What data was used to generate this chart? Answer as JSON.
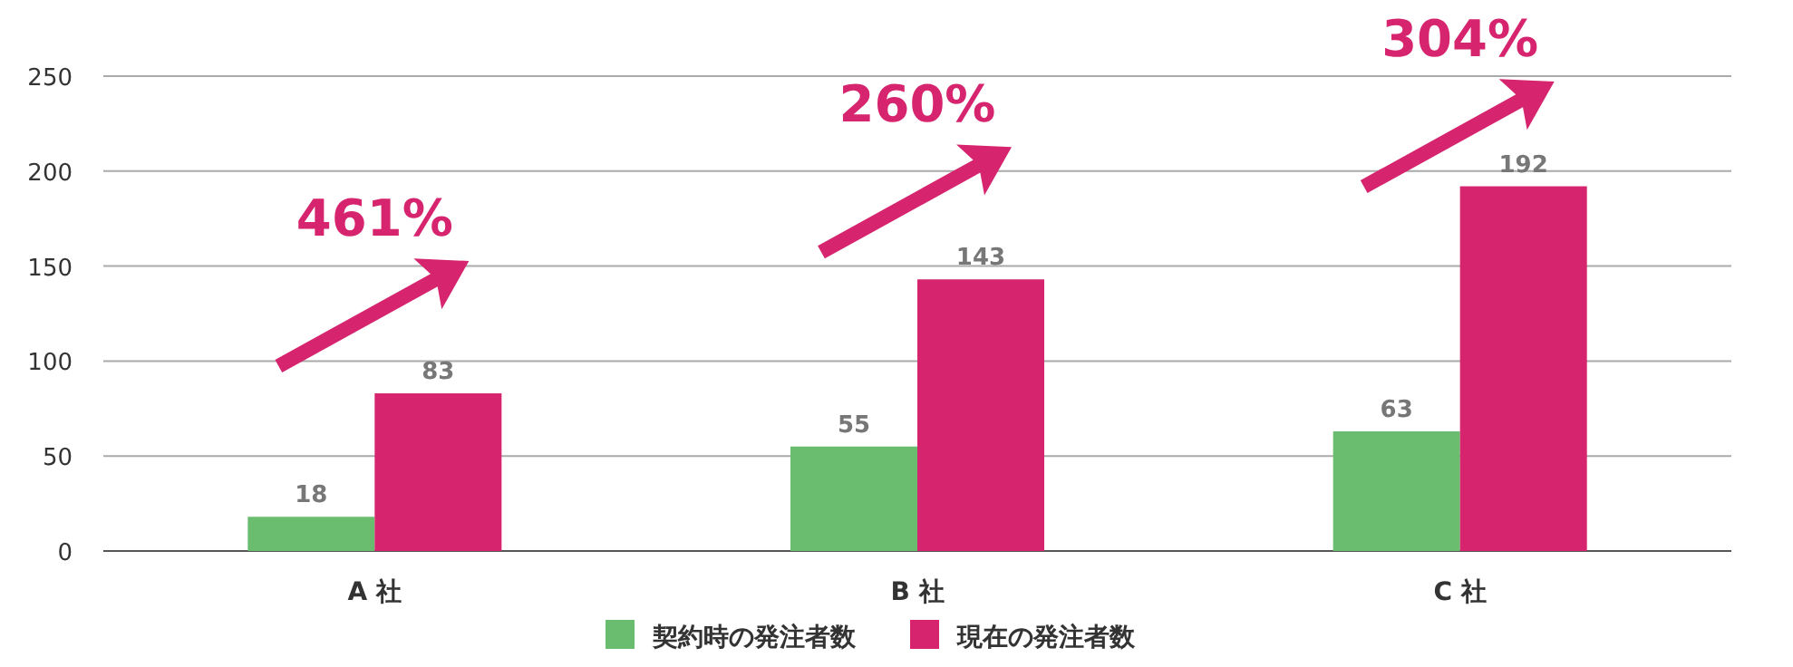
{
  "chart_data": {
    "type": "bar",
    "categories": [
      "A 社",
      "B 社",
      "C 社"
    ],
    "series": [
      {
        "name": "契約時の発注者数",
        "color": "#6abd6e",
        "values": [
          18,
          55,
          63
        ]
      },
      {
        "name": "現在の発注者数",
        "color": "#d6246e",
        "values": [
          83,
          143,
          192
        ]
      }
    ],
    "ylim": [
      0,
      250
    ],
    "yticks": [
      0,
      50,
      100,
      150,
      200,
      250
    ],
    "grid": "y",
    "legend": "bottom",
    "data_labels": true,
    "annotations": [
      "461%",
      "260%",
      "304%"
    ]
  }
}
